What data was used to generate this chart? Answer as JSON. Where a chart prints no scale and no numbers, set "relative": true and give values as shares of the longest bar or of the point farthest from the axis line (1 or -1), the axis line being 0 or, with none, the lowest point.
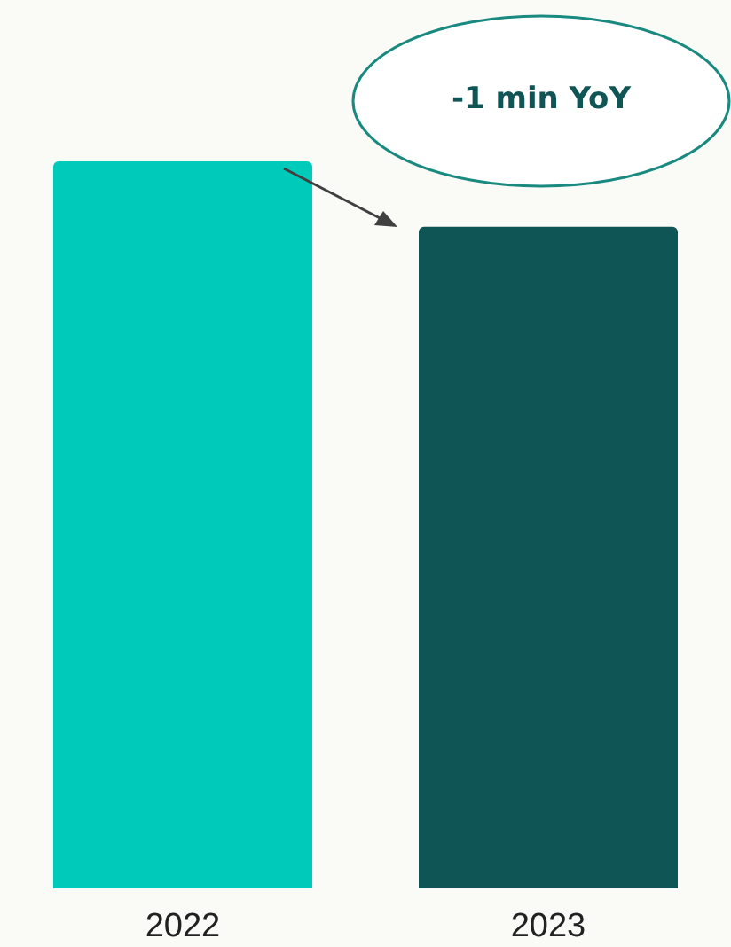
{
  "chart_data": {
    "type": "bar",
    "relative": true,
    "categories": [
      "2022",
      "2023"
    ],
    "values": [
      1,
      0.91
    ],
    "colors": [
      "#00cbbb",
      "#105555"
    ],
    "annotations": [
      "-1 min YoY"
    ]
  }
}
